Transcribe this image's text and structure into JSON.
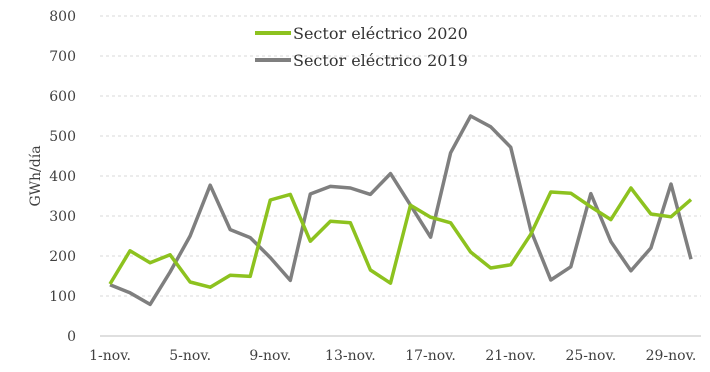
{
  "chart_data": {
    "type": "line",
    "ylabel": "GWh/día",
    "ylim": [
      0,
      800
    ],
    "yticks": [
      0,
      100,
      200,
      300,
      400,
      500,
      600,
      700,
      800
    ],
    "x": [
      "1-nov.",
      "2-nov.",
      "3-nov.",
      "4-nov.",
      "5-nov.",
      "6-nov.",
      "7-nov.",
      "8-nov.",
      "9-nov.",
      "10-nov.",
      "11-nov.",
      "12-nov.",
      "13-nov.",
      "14-nov.",
      "15-nov.",
      "16-nov.",
      "17-nov.",
      "18-nov.",
      "19-nov.",
      "20-nov.",
      "21-nov.",
      "22-nov.",
      "23-nov.",
      "24-nov.",
      "25-nov.",
      "26-nov.",
      "27-nov.",
      "28-nov.",
      "29-nov.",
      "30-nov."
    ],
    "xticks": [
      "1-nov.",
      "5-nov.",
      "9-nov.",
      "13-nov.",
      "17-nov.",
      "21-nov.",
      "25-nov.",
      "29-nov."
    ],
    "grid": true,
    "legend_position": "top-center",
    "series": [
      {
        "name": "Sector eléctrico 2020",
        "color": "#8dc21f",
        "values": [
          130,
          213,
          183,
          203,
          135,
          122,
          152,
          149,
          340,
          354,
          237,
          287,
          283,
          165,
          132,
          327,
          297,
          283,
          210,
          170,
          178,
          254,
          360,
          357,
          323,
          291,
          370,
          305,
          298,
          341
        ]
      },
      {
        "name": "Sector eléctrico 2019",
        "color": "#7f7f7f",
        "values": [
          128,
          108,
          79,
          160,
          250,
          377,
          266,
          246,
          196,
          139,
          355,
          374,
          370,
          354,
          406,
          327,
          247,
          458,
          550,
          523,
          472,
          265,
          140,
          173,
          356,
          236,
          163,
          220,
          380,
          192
        ]
      }
    ]
  }
}
